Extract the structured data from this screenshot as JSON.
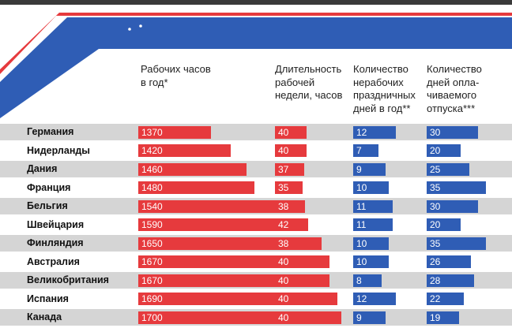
{
  "chart_data": {
    "type": "bar",
    "columns": [
      {
        "label": "Рабочих часов\nв год*",
        "color": "#e63a3d"
      },
      {
        "label": "Длительность\nрабочей\nнедели, часов",
        "color": "#e63a3d"
      },
      {
        "label": "Количество\nнерабочих\nпраздничных\nдней в год**",
        "color": "#2f5db5"
      },
      {
        "label": "Количество\nдней опла-\nчиваемого\nотпуска***",
        "color": "#2f5db5"
      }
    ],
    "categories": [
      "Германия",
      "Нидерланды",
      "Дания",
      "Франция",
      "Бельгия",
      "Швейцария",
      "Финляндия",
      "Австралия",
      "Великобритания",
      "Испания",
      "Канада"
    ],
    "series": [
      {
        "values": [
          1370,
          1420,
          1460,
          1480,
          1540,
          1590,
          1650,
          1670,
          1670,
          1690,
          1700
        ]
      },
      {
        "values": [
          40,
          40,
          37,
          35,
          38,
          42,
          38,
          40,
          40,
          40,
          40
        ]
      },
      {
        "values": [
          12,
          7,
          9,
          10,
          11,
          11,
          10,
          10,
          8,
          12,
          9
        ]
      },
      {
        "values": [
          30,
          20,
          25,
          35,
          30,
          20,
          35,
          26,
          28,
          22,
          19
        ]
      }
    ]
  }
}
